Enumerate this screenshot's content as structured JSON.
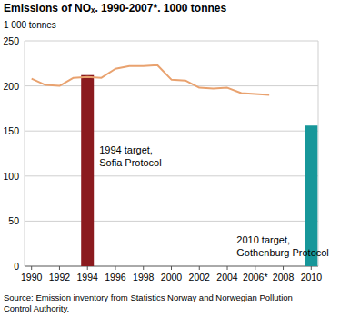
{
  "chart_data": {
    "type": "line",
    "title": "Emissions of NOₓ. 1990-2007*. 1000 tonnes",
    "y_label": "1 000 tonnes",
    "source": [
      "Source: Emission inventory from Statistics Norway and Norwegian Pollution",
      "Control Authority."
    ],
    "annotations": [
      [
        "1994 target,",
        "Sofia Protocol"
      ],
      [
        "2010 target,",
        "Gothenburg Protocol"
      ]
    ],
    "x": [
      1990,
      1991,
      1992,
      1993,
      1994,
      1995,
      1996,
      1997,
      1998,
      1999,
      2000,
      2001,
      2002,
      2003,
      2004,
      2005,
      2006,
      2007,
      2008,
      2009,
      2010
    ],
    "series": [
      {
        "type": "line",
        "color": "#e9a26f",
        "values": [
          208,
          201,
          200,
          209,
          210,
          209,
          219,
          222,
          222,
          223,
          207,
          206,
          198,
          197,
          198,
          192,
          191,
          190,
          null,
          null,
          null
        ]
      },
      {
        "type": "bar",
        "color": "#8b1a1e",
        "values": [
          null,
          null,
          null,
          null,
          212,
          null,
          null,
          null,
          null,
          null,
          null,
          null,
          null,
          null,
          null,
          null,
          null,
          null,
          null,
          null,
          null
        ]
      },
      {
        "type": "bar",
        "color": "#17979a",
        "values": [
          null,
          null,
          null,
          null,
          null,
          null,
          null,
          null,
          null,
          null,
          null,
          null,
          null,
          null,
          null,
          null,
          null,
          null,
          null,
          null,
          156
        ]
      }
    ],
    "xlim": [
      1989.5,
      2010.5
    ],
    "xticks": [
      1990,
      1992,
      1994,
      1996,
      1998,
      2000,
      2002,
      2004,
      {
        "value": 2006,
        "label": "2006*"
      },
      2008,
      2010
    ],
    "ylim": [
      0,
      250
    ],
    "yticks": [
      0,
      50,
      100,
      150,
      200,
      250
    ],
    "grid": true
  }
}
